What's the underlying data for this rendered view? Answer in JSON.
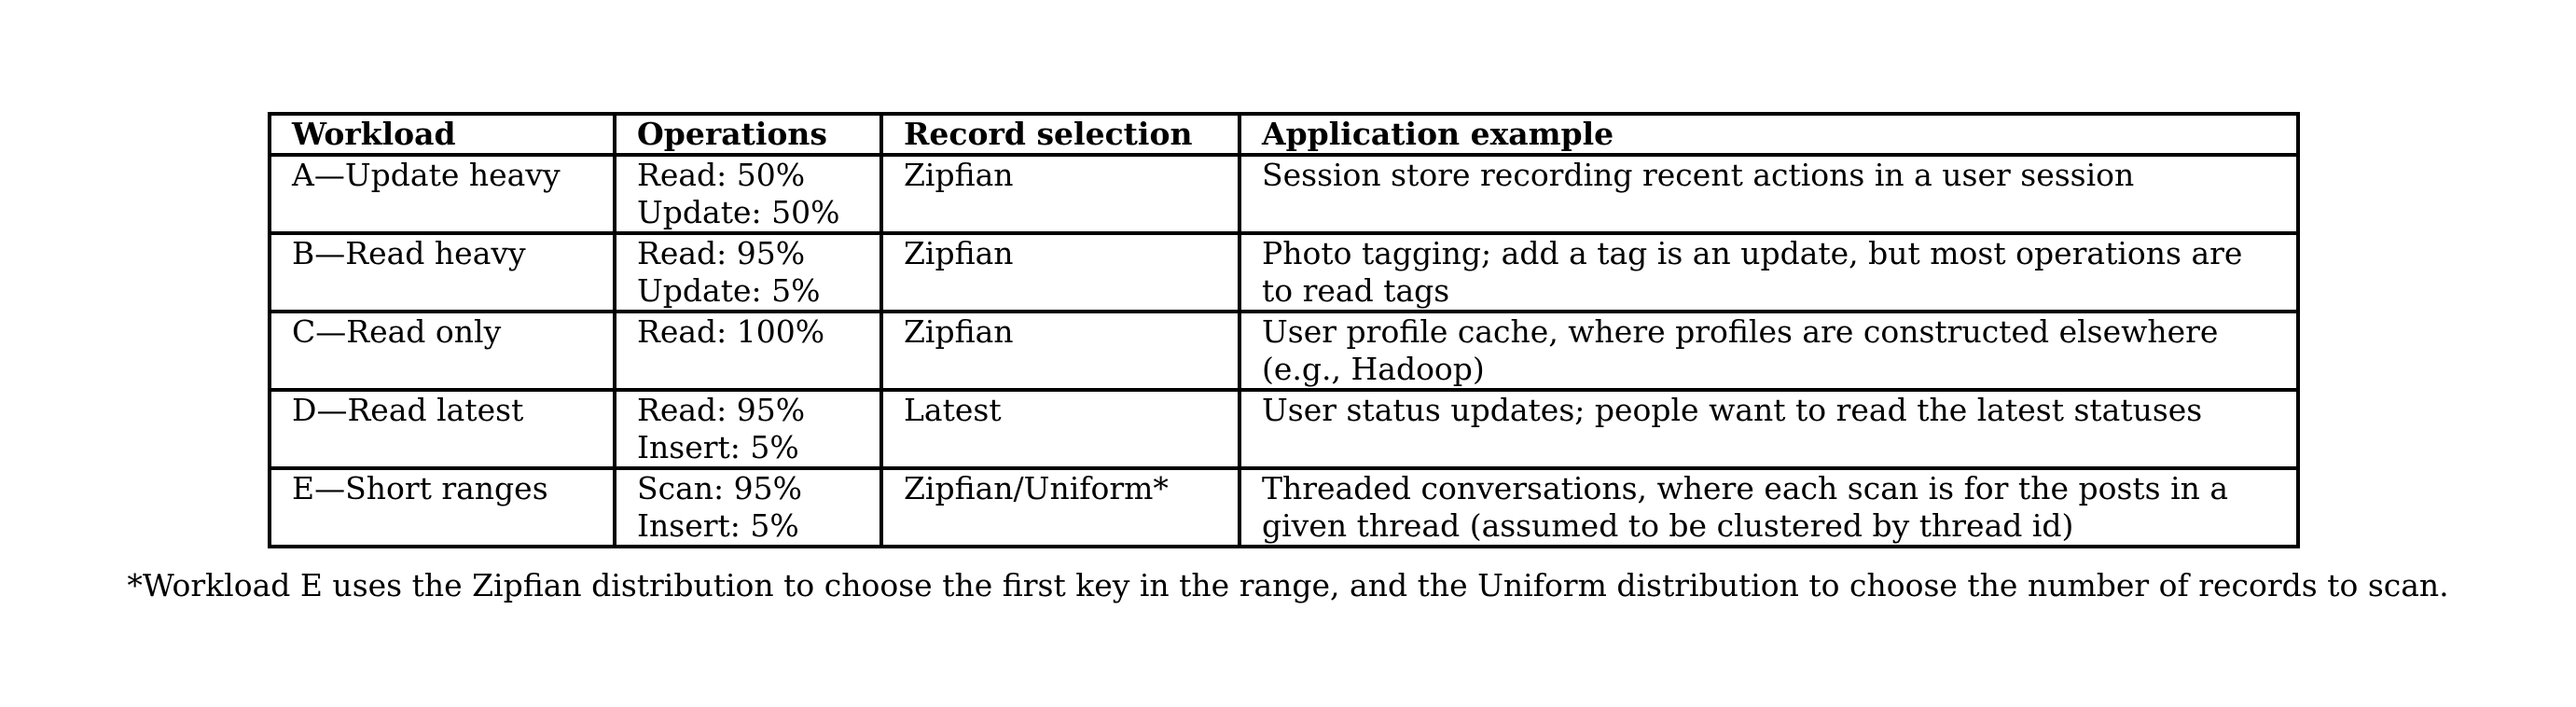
{
  "table": {
    "headers": [
      "Workload",
      "Operations",
      "Record selection",
      "Application example"
    ],
    "rows": [
      {
        "workload": "A—Update heavy",
        "operations": "Read: 50%\nUpdate: 50%",
        "record_selection": "Zipfian",
        "application_example": "Session store recording recent actions in a user session"
      },
      {
        "workload": "B—Read heavy",
        "operations": "Read: 95%\nUpdate: 5%",
        "record_selection": "Zipfian",
        "application_example": "Photo tagging; add a tag is an update, but most operations are to read tags"
      },
      {
        "workload": "C—Read only",
        "operations": "Read: 100%",
        "record_selection": "Zipfian",
        "application_example": "User profile cache, where profiles are constructed elsewhere (e.g., Hadoop)"
      },
      {
        "workload": "D—Read latest",
        "operations": "Read: 95%\nInsert: 5%",
        "record_selection": "Latest",
        "application_example": "User status updates; people want to read the latest statuses"
      },
      {
        "workload": "E—Short ranges",
        "operations": "Scan: 95%\nInsert: 5%",
        "record_selection": "Zipfian/Uniform*",
        "application_example": "Threaded conversations, where each scan is for the posts in a given thread (assumed to be clustered by thread id)"
      }
    ]
  },
  "footnote": "*Workload E uses the Zipfian distribution to choose the first key in the range, and the Uniform distribution to choose the number of records to scan."
}
